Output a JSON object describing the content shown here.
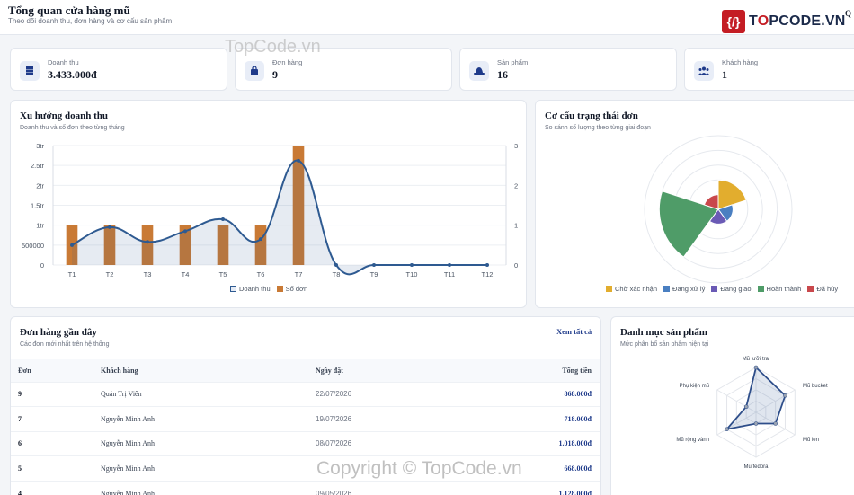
{
  "header": {
    "title": "Tổng quan cửa hàng mũ",
    "subtitle": "Theo dõi doanh thu, đơn hàng và cơ cấu sản phẩm",
    "user_initial": "Q"
  },
  "logo": {
    "badge": "{/}",
    "brand_prefix": "T",
    "brand_o": "O",
    "brand_suffix": "PCODE.VN"
  },
  "stats": [
    {
      "label": "Doanh thu",
      "value": "3.433.000đ",
      "icon": "stack-icon"
    },
    {
      "label": "Đơn hàng",
      "value": "9",
      "icon": "shopping-bag-icon"
    },
    {
      "label": "Sản phẩm",
      "value": "16",
      "icon": "hat-icon"
    },
    {
      "label": "Khách hàng",
      "value": "1",
      "icon": "users-icon"
    }
  ],
  "colors": {
    "accent": "#1e3a8a",
    "line": "#2e5a91",
    "bar": "#c97a35"
  },
  "revenue_chart": {
    "title": "Xu hướng doanh thu",
    "subtitle": "Doanh thu và số đơn theo từng tháng"
  },
  "status_chart": {
    "title": "Cơ cấu trạng thái đơn",
    "subtitle": "So sánh số lượng theo từng giai đoạn"
  },
  "category_chart": {
    "title": "Danh mục sản phẩm",
    "subtitle": "Mức phân bổ sản phẩm hiện tại"
  },
  "orders": {
    "title": "Đơn hàng gần đây",
    "subtitle": "Các đơn mới nhất trên hệ thống",
    "view_all": "Xem tất cả",
    "columns": [
      "Đơn",
      "Khách hàng",
      "Ngày đặt",
      "Tổng tiền"
    ],
    "rows": [
      {
        "id": "9",
        "customer": "Quản Trị Viên",
        "date": "22/07/2026",
        "total": "868.000đ"
      },
      {
        "id": "7",
        "customer": "Nguyễn Minh Anh",
        "date": "19/07/2026",
        "total": "718.000đ"
      },
      {
        "id": "6",
        "customer": "Nguyễn Minh Anh",
        "date": "08/07/2026",
        "total": "1.018.000đ"
      },
      {
        "id": "5",
        "customer": "Nguyễn Minh Anh",
        "date": "",
        "total": "668.000đ"
      },
      {
        "id": "4",
        "customer": "Nguyễn Minh Anh",
        "date": "09/05/2026",
        "total": "1.128.000đ"
      }
    ]
  },
  "watermarks": {
    "top": "TopCode.vn",
    "bottom": "Copyright © TopCode.vn"
  },
  "chart_data": [
    {
      "type": "bar",
      "categories": [
        "T1",
        "T2",
        "T3",
        "T4",
        "T5",
        "T6",
        "T7",
        "T8",
        "T9",
        "T10",
        "T11",
        "T12"
      ],
      "series": [
        {
          "name": "Doanh thu",
          "kind": "line",
          "axis": "left",
          "color": "#2e5a91",
          "values": [
            500000,
            950000,
            580000,
            850000,
            1150000,
            650000,
            2620000,
            0,
            0,
            0,
            0,
            0
          ]
        },
        {
          "name": "Số đơn",
          "kind": "bar",
          "axis": "right",
          "color": "#c97a35",
          "values": [
            1,
            1,
            1,
            1,
            1,
            1,
            3,
            0,
            0,
            0,
            0,
            0
          ]
        }
      ],
      "y_left_ticks": [
        "0",
        "500000",
        "1tr",
        "1.5tr",
        "2tr",
        "2.5tr",
        "3tr"
      ],
      "ylim_left": [
        0,
        3000000
      ],
      "y_right_ticks": [
        "0",
        "1",
        "2",
        "3"
      ],
      "ylim_right": [
        0,
        3
      ],
      "grid": true,
      "legend": "bottom"
    },
    {
      "type": "polar-area",
      "categories": [
        "Chờ xác nhận",
        "Đang xử lý",
        "Đang giao",
        "Hoàn thành",
        "Đã hủy"
      ],
      "values": [
        2,
        1,
        1,
        4,
        1
      ],
      "colors": [
        "#e2ad2e",
        "#4a7fc1",
        "#6a5ab5",
        "#4f9c68",
        "#c9484c"
      ],
      "rmax": 5,
      "legend": "bottom"
    },
    {
      "type": "radar",
      "categories": [
        "Mũ lưỡi trai",
        "Mũ bucket",
        "Mũ len",
        "Mũ fedora",
        "Mũ rộng vành",
        "Phụ kiện mũ"
      ],
      "values": [
        4,
        3,
        2,
        1,
        3,
        1
      ],
      "rmax": 4
    }
  ]
}
